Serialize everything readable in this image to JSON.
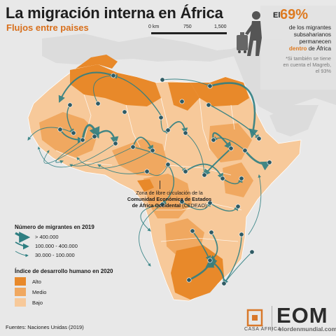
{
  "header": {
    "title": "La migración interna en África",
    "subtitle": "Flujos entre paises"
  },
  "scale": {
    "labels": [
      "0 km",
      "750",
      "1,500"
    ]
  },
  "stat": {
    "prefix": "El",
    "percent": "69%",
    "line1": "de los migrantes",
    "line2": "subsaharianos",
    "line3": "permanecen",
    "line4_accent": "dentro",
    "line4_rest": "de África",
    "note1": "*Si también se tiene",
    "note2": "en cuenta el Magreb,",
    "note3": "el 93%"
  },
  "cedeao_note": {
    "line1": "Zona de libre circulación de la",
    "line2": "Comunidad Económica de Estados",
    "line3": "de África Occidental",
    "line3_rest": "(CEDEAO)"
  },
  "legend_migrants": {
    "title": "Número de migrantes en 2019",
    "items": [
      "> 400.000",
      "100.000 - 400.000",
      "30.000 - 100.000"
    ]
  },
  "legend_hdi": {
    "title": "Índice de desarrollo humano en 2020",
    "items": [
      {
        "label": "Alto",
        "color": "#e8892a"
      },
      {
        "label": "Medio",
        "color": "#f0a860"
      },
      {
        "label": "Bajo",
        "color": "#f7c99a"
      }
    ]
  },
  "sources": "Fuentes: Naciones Unidas (2019)",
  "logos": {
    "casa_africa": "CASA ÁFRICA",
    "eom": "EOM",
    "eom_site": "elordenmundial.com"
  },
  "colors": {
    "high": "#e8892a",
    "medium": "#f0a860",
    "low": "#f7c99a",
    "flow": "#2f7f82",
    "node": "#2f5a63",
    "ocean": "#e8e8e8",
    "outside_land": "#dcdcdc",
    "accent": "#de7a20"
  }
}
